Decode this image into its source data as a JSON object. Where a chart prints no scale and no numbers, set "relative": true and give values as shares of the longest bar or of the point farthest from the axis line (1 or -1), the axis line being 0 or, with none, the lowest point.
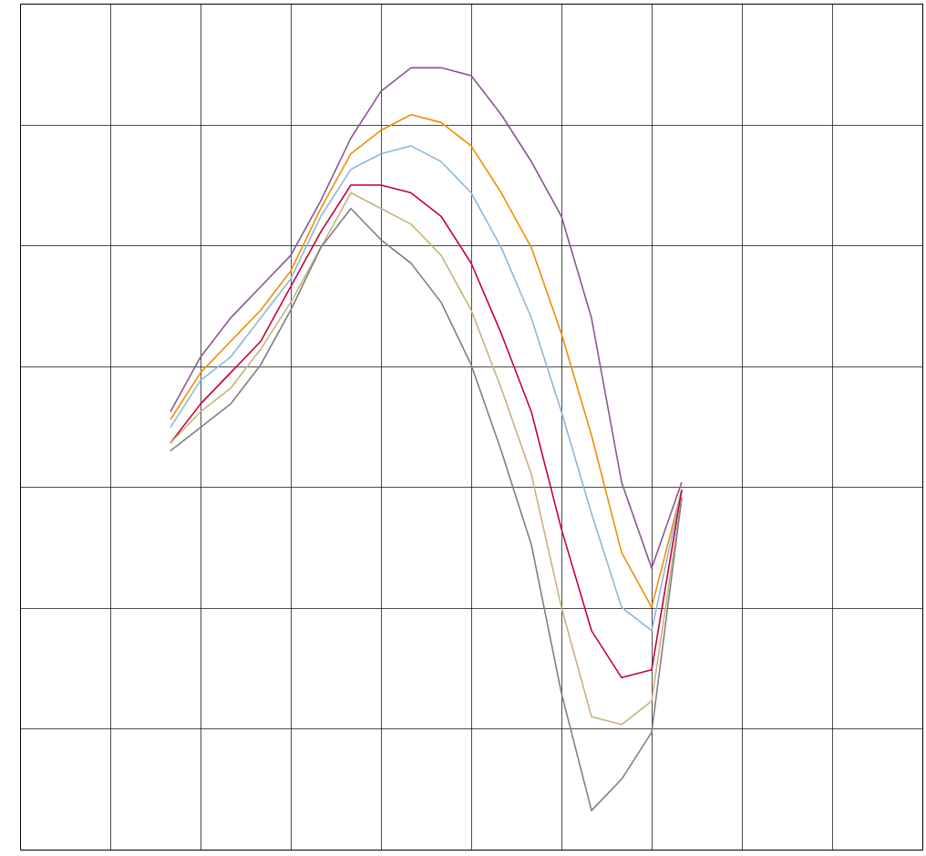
{
  "chart_data": {
    "type": "line",
    "relative": true,
    "grid": true,
    "tick_labels": false,
    "categories": [
      null,
      null,
      null,
      null,
      null,
      null,
      null,
      null,
      null,
      null,
      null,
      null,
      null,
      null,
      null,
      null,
      null,
      null
    ],
    "series": [
      {
        "color": "#8c5694",
        "values": [
          0.56,
          0.63,
          0.68,
          0.72,
          0.76,
          0.83,
          0.91,
          0.97,
          1.0,
          1.0,
          0.99,
          0.94,
          0.88,
          0.81,
          0.68,
          0.47,
          0.36,
          0.47
        ]
      },
      {
        "color": "#f28e00",
        "values": [
          0.55,
          0.61,
          0.65,
          0.69,
          0.74,
          0.82,
          0.89,
          0.92,
          0.94,
          0.93,
          0.9,
          0.84,
          0.77,
          0.66,
          0.53,
          0.38,
          0.31,
          0.46
        ]
      },
      {
        "color": "#8db7dd",
        "values": [
          0.54,
          0.6,
          0.63,
          0.68,
          0.73,
          0.81,
          0.87,
          0.89,
          0.9,
          0.88,
          0.84,
          0.77,
          0.68,
          0.56,
          0.43,
          0.31,
          0.28,
          0.46
        ]
      },
      {
        "color": "#c4003a",
        "values": [
          0.52,
          0.57,
          0.61,
          0.65,
          0.72,
          0.79,
          0.85,
          0.85,
          0.84,
          0.81,
          0.75,
          0.66,
          0.56,
          0.41,
          0.28,
          0.22,
          0.23,
          0.46
        ]
      },
      {
        "color": "#c8b27d",
        "values": [
          0.52,
          0.56,
          0.59,
          0.64,
          0.7,
          0.77,
          0.84,
          0.82,
          0.8,
          0.76,
          0.69,
          0.59,
          0.48,
          0.31,
          0.17,
          0.16,
          0.19,
          0.45
        ]
      },
      {
        "color": "#808080",
        "values": [
          0.51,
          0.54,
          0.57,
          0.62,
          0.69,
          0.77,
          0.82,
          0.78,
          0.75,
          0.7,
          0.62,
          0.51,
          0.39,
          0.2,
          0.05,
          0.09,
          0.15,
          0.45
        ]
      }
    ]
  }
}
